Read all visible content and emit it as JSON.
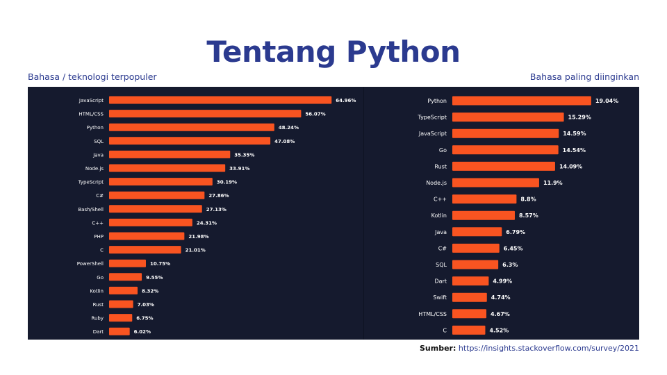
{
  "title": "Tentang Python",
  "left_subtitle": "Bahasa / teknologi terpopuler",
  "right_subtitle": "Bahasa paling diinginkan",
  "source": {
    "label": "Sumber:",
    "url": "https://insights.stackoverflow.com/survey/2021"
  },
  "colors": {
    "bar": "#f95421",
    "panel_bg": "#151a2e",
    "text": "#ffffff",
    "title": "#2b3a8f"
  },
  "chart_data": [
    {
      "type": "bar",
      "orientation": "horizontal",
      "title": "Bahasa / teknologi terpopuler",
      "categories": [
        "JavaScript",
        "HTML/CSS",
        "Python",
        "SQL",
        "Java",
        "Node.js",
        "TypeScript",
        "C#",
        "Bash/Shell",
        "C++",
        "PHP",
        "C",
        "PowerShell",
        "Go",
        "Kotlin",
        "Rust",
        "Ruby",
        "Dart"
      ],
      "values": [
        64.96,
        56.07,
        48.24,
        47.08,
        35.35,
        33.91,
        30.19,
        27.86,
        27.13,
        24.31,
        21.98,
        21.01,
        10.75,
        9.55,
        8.32,
        7.03,
        6.75,
        6.02
      ],
      "labels": [
        "64.96%",
        "56.07%",
        "48.24%",
        "47.08%",
        "35.35%",
        "33.91%",
        "30.19%",
        "27.86%",
        "27.13%",
        "24.31%",
        "21.98%",
        "21.01%",
        "10.75%",
        "9.55%",
        "8.32%",
        "7.03%",
        "6.75%",
        "6.02%"
      ],
      "xlim": [
        0,
        100
      ]
    },
    {
      "type": "bar",
      "orientation": "horizontal",
      "title": "Bahasa paling diinginkan",
      "categories": [
        "Python",
        "TypeScript",
        "JavaScript",
        "Go",
        "Rust",
        "Node.js",
        "C++",
        "Kotlin",
        "Java",
        "C#",
        "SQL",
        "Dart",
        "Swift",
        "HTML/CSS",
        "C"
      ],
      "values": [
        19.04,
        15.29,
        14.59,
        14.54,
        14.09,
        11.9,
        8.8,
        8.57,
        6.79,
        6.45,
        6.3,
        4.99,
        4.74,
        4.67,
        4.52
      ],
      "labels": [
        "19.04%",
        "15.29%",
        "14.59%",
        "14.54%",
        "14.09%",
        "11.9%",
        "8.8%",
        "8.57%",
        "6.79%",
        "6.45%",
        "6.3%",
        "4.99%",
        "4.74%",
        "4.67%",
        "4.52%"
      ],
      "xlim": [
        0,
        30
      ]
    }
  ]
}
